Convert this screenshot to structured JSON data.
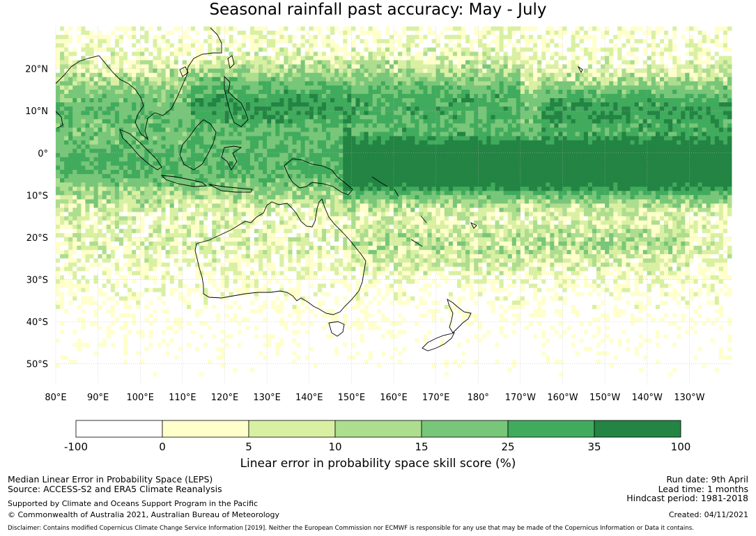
{
  "title": "Seasonal rainfall past accuracy: May - July",
  "map": {
    "lat_labels": [
      "20°N",
      "10°N",
      "0°",
      "10°S",
      "20°S",
      "30°S",
      "40°S",
      "50°S"
    ],
    "lat_values": [
      20,
      10,
      0,
      -10,
      -20,
      -30,
      -40,
      -50
    ],
    "lon_labels": [
      "80°E",
      "90°E",
      "100°E",
      "110°E",
      "120°E",
      "130°E",
      "140°E",
      "150°E",
      "160°E",
      "170°E",
      "180°",
      "170°W",
      "160°W",
      "150°W",
      "140°W",
      "130°W"
    ],
    "lon_values": [
      80,
      90,
      100,
      110,
      120,
      130,
      140,
      150,
      160,
      170,
      180,
      190,
      200,
      210,
      220,
      230
    ],
    "extent": {
      "lon_min": 80,
      "lon_max": 240,
      "lat_min": -55,
      "lat_max": 30
    },
    "colors": {
      "coast": "#000000",
      "grid": "#b4b4b4"
    }
  },
  "colorbar": {
    "ticks": [
      "-100",
      "0",
      "5",
      "10",
      "15",
      "25",
      "35",
      "100"
    ],
    "colors": [
      "#ffffff",
      "#ffffcc",
      "#d9f0a3",
      "#addd8e",
      "#78c679",
      "#41ab5d",
      "#238443"
    ],
    "label": "Linear error in probability space skill score (%)"
  },
  "footer": {
    "line1": "Median Linear Error in Probability Space (LEPS)",
    "line2": "Source: ACCESS-S2 and ERA5 Climate Reanalysis",
    "line3": "Supported by Climate and Oceans Support Program in the Pacific",
    "line4": "© Commonwealth of Australia 2021, Australian Bureau of Meteorology",
    "run_date": "Run date: 9th April",
    "lead_time": "Lead time: 1 months",
    "hindcast": "Hindcast period: 1981-2018",
    "created": "Created: 04/11/2021",
    "disclaimer": "Disclaimer: Contains modified Copernicus Climate Change Service Information [2019]. Neither the European Commission nor ECMWF is responsible for any use that may be made of the Copernicus Information or Data it contains."
  }
}
